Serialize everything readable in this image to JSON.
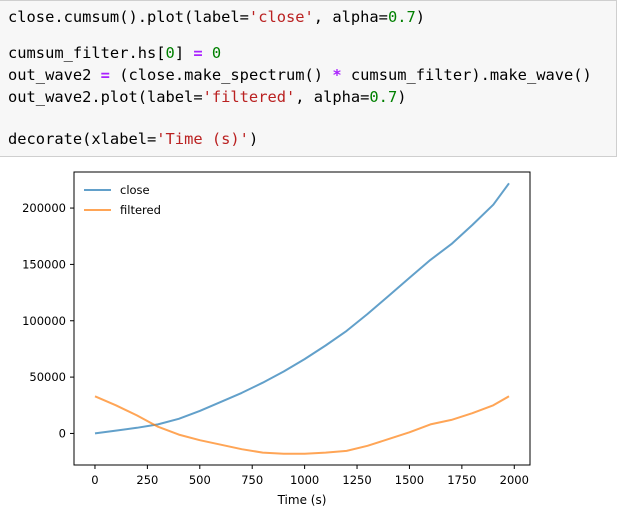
{
  "code_cell": {
    "lines": [
      {
        "segments": [
          {
            "text": "close.cumsum().plot(label=",
            "kind": "plain"
          },
          {
            "text": "'close'",
            "kind": "str"
          },
          {
            "text": ", alpha=",
            "kind": "plain"
          },
          {
            "text": "0.7",
            "kind": "num"
          },
          {
            "text": ")",
            "kind": "plain"
          }
        ]
      },
      {
        "segments": []
      },
      {
        "segments": [
          {
            "text": "cumsum_filter.hs[",
            "kind": "plain"
          },
          {
            "text": "0",
            "kind": "num"
          },
          {
            "text": "] ",
            "kind": "plain"
          },
          {
            "text": "=",
            "kind": "op"
          },
          {
            "text": " ",
            "kind": "plain"
          },
          {
            "text": "0",
            "kind": "num"
          }
        ]
      },
      {
        "segments": [
          {
            "text": "out_wave2 ",
            "kind": "plain"
          },
          {
            "text": "=",
            "kind": "op"
          },
          {
            "text": " (close.make_spectrum() ",
            "kind": "plain"
          },
          {
            "text": "*",
            "kind": "op"
          },
          {
            "text": " cumsum_filter).make_wave()",
            "kind": "plain"
          }
        ]
      },
      {
        "segments": [
          {
            "text": "out_wave2.plot(label=",
            "kind": "plain"
          },
          {
            "text": "'filtered'",
            "kind": "str"
          },
          {
            "text": ", alpha=",
            "kind": "plain"
          },
          {
            "text": "0.7",
            "kind": "num"
          },
          {
            "text": ")",
            "kind": "plain"
          }
        ]
      },
      {
        "segments": []
      },
      {
        "segments": [
          {
            "text": "decorate(xlabel=",
            "kind": "plain"
          },
          {
            "text": "'Time (s)'",
            "kind": "str"
          },
          {
            "text": ")",
            "kind": "plain"
          }
        ]
      }
    ]
  },
  "colors": {
    "code_background": "#f7f7f7",
    "string": "#ba2121",
    "number": "#008000",
    "operator": "#aa22ff",
    "series_close": "#1f77b4",
    "series_filtered": "#ff7f0e"
  },
  "chart_data": {
    "type": "line",
    "title": "",
    "xlabel": "Time (s)",
    "ylabel": "",
    "xlim": [
      -100,
      2075
    ],
    "ylim": [
      -28000,
      232000
    ],
    "xticks": [
      0,
      250,
      500,
      750,
      1000,
      1250,
      1500,
      1750,
      2000
    ],
    "xtick_labels": [
      "0",
      "250",
      "500",
      "750",
      "1000",
      "1250",
      "1500",
      "1750",
      "2000"
    ],
    "yticks": [
      0,
      50000,
      100000,
      150000,
      200000
    ],
    "ytick_labels": [
      "0",
      "50000",
      "100000",
      "150000",
      "200000"
    ],
    "grid": false,
    "legend_placement": "upper left",
    "series": [
      {
        "name": "close",
        "alpha": 0.7,
        "x": [
          0,
          100,
          200,
          300,
          400,
          500,
          600,
          700,
          800,
          900,
          1000,
          1100,
          1200,
          1300,
          1400,
          1500,
          1600,
          1700,
          1800,
          1900,
          1975
        ],
        "y": [
          0,
          2500,
          5000,
          8000,
          13000,
          20000,
          28000,
          36000,
          45000,
          55000,
          66000,
          78000,
          91000,
          106000,
          122000,
          138000,
          154000,
          168000,
          185000,
          203000,
          222000
        ]
      },
      {
        "name": "filtered",
        "alpha": 0.7,
        "x": [
          0,
          100,
          200,
          300,
          400,
          500,
          600,
          700,
          800,
          900,
          1000,
          1100,
          1200,
          1300,
          1400,
          1500,
          1600,
          1700,
          1800,
          1900,
          1975
        ],
        "y": [
          33000,
          25000,
          16000,
          6000,
          -1000,
          -6000,
          -10000,
          -14000,
          -17000,
          -18000,
          -18000,
          -17000,
          -15500,
          -11000,
          -5000,
          1000,
          8000,
          12000,
          18000,
          25000,
          33000
        ]
      }
    ]
  }
}
